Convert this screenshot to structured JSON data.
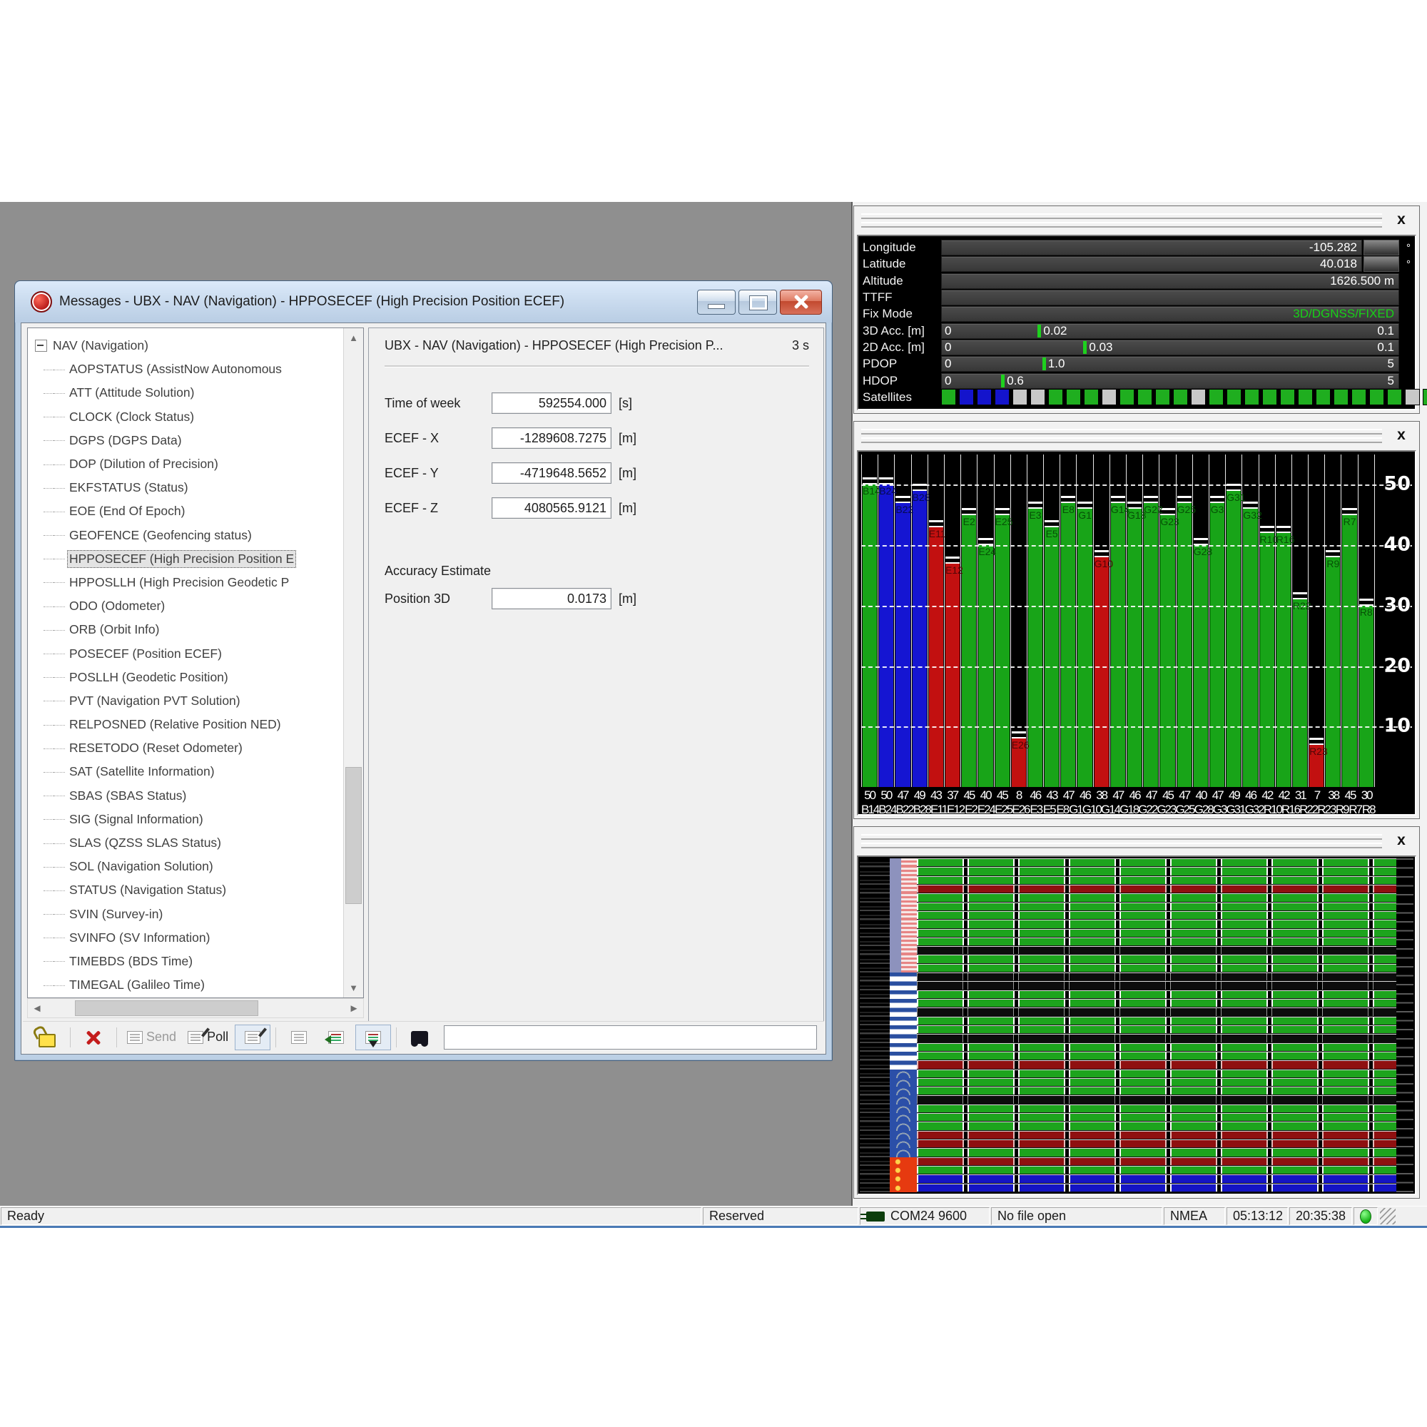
{
  "icons": {
    "panel_close": "x",
    "scroll_up": "▲",
    "scroll_down": "▼",
    "scroll_left": "◄",
    "scroll_right": "►"
  },
  "window": {
    "title": "Messages - UBX - NAV (Navigation) - HPPOSECEF (High Precision Position ECEF)",
    "tree": {
      "root": "NAV (Navigation)",
      "selected_index": 8,
      "items": [
        "AOPSTATUS (AssistNow Autonomous",
        "ATT (Attitude Solution)",
        "CLOCK (Clock Status)",
        "DGPS (DGPS Data)",
        "DOP (Dilution of Precision)",
        "EKFSTATUS (Status)",
        "EOE (End Of Epoch)",
        "GEOFENCE (Geofencing status)",
        "HPPOSECEF (High Precision Position E",
        "HPPOSLLH (High Precision Geodetic P",
        "ODO (Odometer)",
        "ORB (Orbit Info)",
        "POSECEF (Position ECEF)",
        "POSLLH (Geodetic Position)",
        "PVT (Navigation PVT Solution)",
        "RELPOSNED (Relative Position NED)",
        "RESETODO (Reset Odometer)",
        "SAT (Satellite Information)",
        "SBAS (SBAS Status)",
        "SIG (Signal Information)",
        "SLAS (QZSS SLAS Status)",
        "SOL (Navigation Solution)",
        "STATUS (Navigation Status)",
        "SVIN (Survey-in)",
        "SVINFO (SV Information)",
        "TIMEBDS (BDS Time)",
        "TIMEGAL (Galileo Time)"
      ]
    },
    "message_view": {
      "header": "UBX - NAV (Navigation) - HPPOSECEF (High Precision P...",
      "age": "3 s",
      "fields": [
        {
          "label": "Time of week",
          "value": "592554.000",
          "unit": "[s]"
        },
        {
          "label": "ECEF - X",
          "value": "-1289608.7275",
          "unit": "[m]"
        },
        {
          "label": "ECEF - Y",
          "value": "-4719648.5652",
          "unit": "[m]"
        },
        {
          "label": "ECEF - Z",
          "value": "4080565.9121",
          "unit": "[m]"
        }
      ],
      "section_label": "Accuracy Estimate",
      "accuracy_field": {
        "label": "Position 3D",
        "value": "0.0173",
        "unit": "[m]"
      }
    },
    "toolbar": {
      "send_label": "Send",
      "poll_label": "Poll"
    }
  },
  "data_panel": {
    "text_rows": [
      {
        "label": "Longitude",
        "value": "-105.282",
        "unit": "°",
        "swatch": true
      },
      {
        "label": "Latitude",
        "value": "40.018",
        "unit": "°",
        "swatch": true
      },
      {
        "label": "Altitude",
        "value": "1626.500 m",
        "unit": "",
        "swatch": false
      },
      {
        "label": "TTFF",
        "value": "",
        "unit": "",
        "swatch": false
      },
      {
        "label": "Fix Mode",
        "value": "3D/DGNSS/FIXED",
        "unit": "",
        "swatch": false,
        "green": true
      }
    ],
    "gauge_rows": [
      {
        "label": "3D Acc. [m]",
        "min": "0",
        "max": "0.1",
        "value": "0.02",
        "pct": 21
      },
      {
        "label": "2D Acc. [m]",
        "min": "0",
        "max": "0.1",
        "value": "0.03",
        "pct": 31
      },
      {
        "label": "PDOP",
        "min": "0",
        "max": "5",
        "value": "1.0",
        "pct": 22
      },
      {
        "label": "HDOP",
        "min": "0",
        "max": "5",
        "value": "0.6",
        "pct": 13
      }
    ],
    "satellites_label": "Satellites",
    "satellite_squares": [
      "g",
      "b",
      "b",
      "b",
      "s",
      "s",
      "g",
      "g",
      "g",
      "s",
      "g",
      "g",
      "g",
      "g",
      "s",
      "g",
      "g",
      "g",
      "g",
      "g",
      "g",
      "g",
      "g",
      "g",
      "g",
      "g",
      "s",
      "g",
      "s",
      "g",
      "g",
      "g"
    ],
    "status_green": "#17d117"
  },
  "cno_chart": {
    "type": "bar",
    "ylabel_ticks": [
      50,
      40,
      30,
      20,
      10
    ],
    "ymax": 55,
    "bars": [
      {
        "id": "B14",
        "color": "green",
        "cno": 50
      },
      {
        "id": "B24",
        "color": "blue",
        "cno": 50
      },
      {
        "id": "B22",
        "color": "blue",
        "cno": 47
      },
      {
        "id": "B28",
        "color": "blue",
        "cno": 49
      },
      {
        "id": "E11",
        "color": "red",
        "cno": 43
      },
      {
        "id": "E12",
        "color": "red",
        "cno": 37
      },
      {
        "id": "E2",
        "color": "green",
        "cno": 45
      },
      {
        "id": "E24",
        "color": "green",
        "cno": 40
      },
      {
        "id": "E25",
        "color": "green",
        "cno": 45
      },
      {
        "id": "E26",
        "color": "red",
        "cno": 8
      },
      {
        "id": "E3",
        "color": "green",
        "cno": 46
      },
      {
        "id": "E5",
        "color": "green",
        "cno": 43
      },
      {
        "id": "E8",
        "color": "green",
        "cno": 47
      },
      {
        "id": "G1",
        "color": "green",
        "cno": 46
      },
      {
        "id": "G10",
        "color": "red",
        "cno": 38
      },
      {
        "id": "G14",
        "color": "green",
        "cno": 47
      },
      {
        "id": "G18",
        "color": "green",
        "cno": 46
      },
      {
        "id": "G22",
        "color": "green",
        "cno": 47
      },
      {
        "id": "G23",
        "color": "green",
        "cno": 45
      },
      {
        "id": "G25",
        "color": "green",
        "cno": 47
      },
      {
        "id": "G28",
        "color": "green",
        "cno": 40
      },
      {
        "id": "G3",
        "color": "green",
        "cno": 47
      },
      {
        "id": "G31",
        "color": "green",
        "cno": 49
      },
      {
        "id": "G32",
        "color": "green",
        "cno": 46
      },
      {
        "id": "R10",
        "color": "green",
        "cno": 42
      },
      {
        "id": "R16",
        "color": "green",
        "cno": 42
      },
      {
        "id": "R22",
        "color": "green",
        "cno": 31
      },
      {
        "id": "R23",
        "color": "red",
        "cno": 7
      },
      {
        "id": "R9",
        "color": "green",
        "cno": 38
      },
      {
        "id": "R7",
        "color": "green",
        "cno": 45
      },
      {
        "id": "R8",
        "color": "green",
        "cno": 30
      }
    ]
  },
  "history_panel": {
    "rows": [
      {
        "flag": "us",
        "color": "green"
      },
      {
        "flag": "us",
        "color": "green"
      },
      {
        "flag": "us",
        "color": "green"
      },
      {
        "flag": "us",
        "color": "darkred"
      },
      {
        "flag": "us",
        "color": "green"
      },
      {
        "flag": "us",
        "color": "green"
      },
      {
        "flag": "us",
        "color": "green"
      },
      {
        "flag": "us",
        "color": "green"
      },
      {
        "flag": "us",
        "color": "green"
      },
      {
        "flag": "us",
        "color": "green"
      },
      {
        "flag": "us",
        "color": "black"
      },
      {
        "flag": "us",
        "color": "green"
      },
      {
        "flag": "us",
        "color": "green"
      },
      {
        "flag": "ru",
        "color": "black"
      },
      {
        "flag": "ru",
        "color": "black"
      },
      {
        "flag": "ru",
        "color": "green"
      },
      {
        "flag": "ru",
        "color": "green"
      },
      {
        "flag": "ru",
        "color": "black"
      },
      {
        "flag": "ru",
        "color": "green"
      },
      {
        "flag": "ru",
        "color": "green"
      },
      {
        "flag": "ru",
        "color": "black"
      },
      {
        "flag": "ru",
        "color": "green"
      },
      {
        "flag": "ru",
        "color": "green"
      },
      {
        "flag": "ru",
        "color": "darkred"
      },
      {
        "flag": "eu",
        "color": "green"
      },
      {
        "flag": "eu",
        "color": "green"
      },
      {
        "flag": "eu",
        "color": "green"
      },
      {
        "flag": "eu",
        "color": "black"
      },
      {
        "flag": "eu",
        "color": "green"
      },
      {
        "flag": "eu",
        "color": "green"
      },
      {
        "flag": "eu",
        "color": "green"
      },
      {
        "flag": "eu",
        "color": "darkred"
      },
      {
        "flag": "eu",
        "color": "darkred"
      },
      {
        "flag": "eu",
        "color": "green"
      },
      {
        "flag": "cn",
        "color": "darkred"
      },
      {
        "flag": "cn",
        "color": "green"
      },
      {
        "flag": "cn",
        "color": "blue"
      },
      {
        "flag": "cn",
        "color": "blue"
      }
    ]
  },
  "status_bar": {
    "ready": "Ready",
    "reserved": "Reserved",
    "port": "COM24 9600",
    "file": "No file open",
    "protocol": "NMEA",
    "time1": "05:13:12",
    "time2": "20:35:38"
  }
}
